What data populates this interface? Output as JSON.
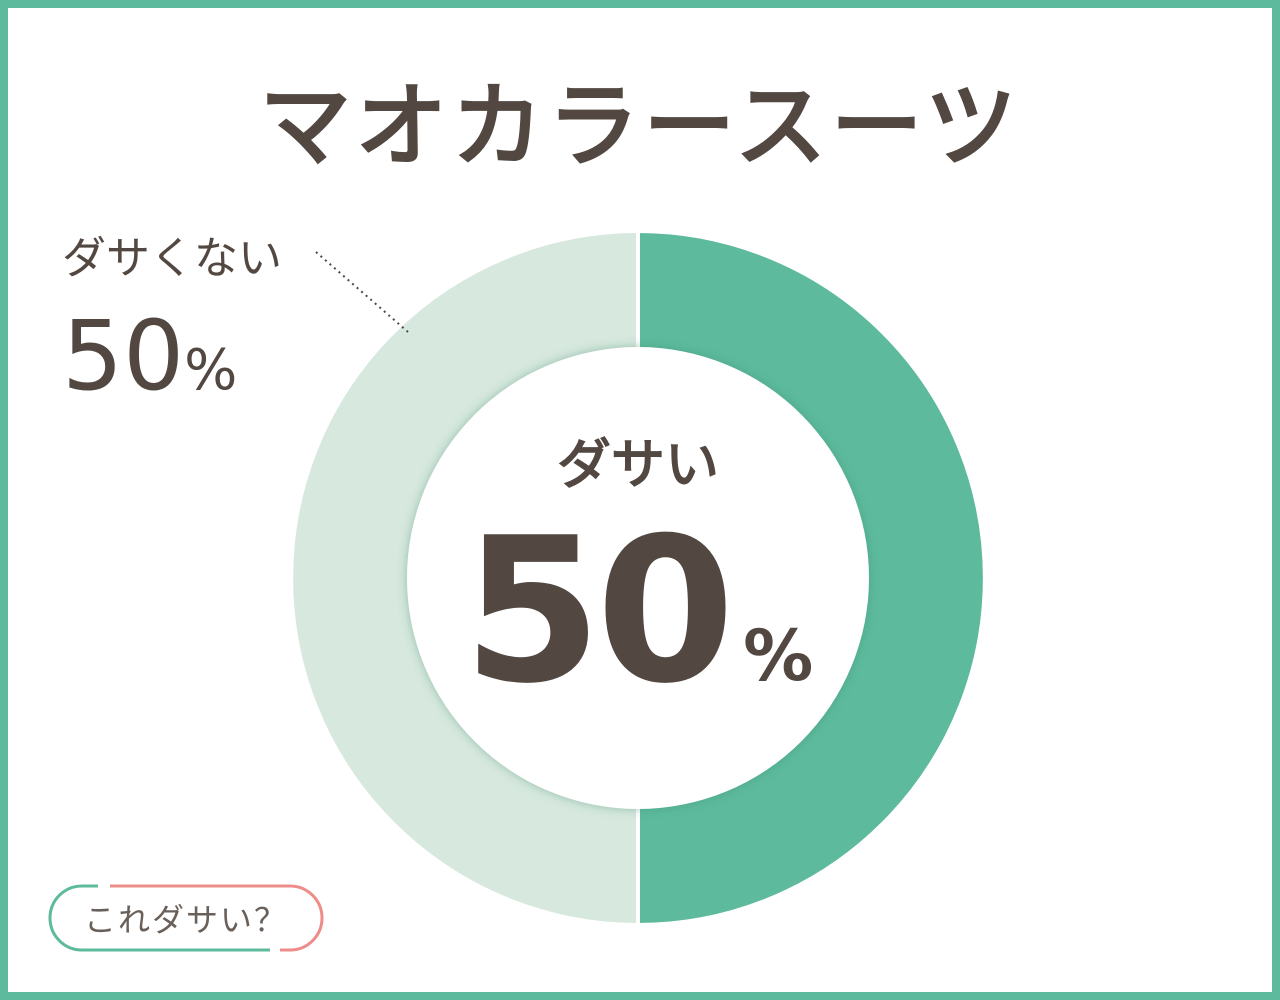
{
  "title": "マオカラースーツ",
  "chart_data": {
    "type": "pie",
    "style": "donut",
    "categories": [
      "ダサい",
      "ダサくない"
    ],
    "values": [
      50,
      50
    ],
    "colors": [
      "#5dba9d",
      "#d7e8de"
    ],
    "labels": {
      "main": {
        "name": "ダサい",
        "value": "50",
        "unit": "%"
      },
      "other": {
        "name": "ダサくない",
        "value": "50",
        "unit": "%"
      }
    }
  },
  "badge": {
    "label": "これダサい？",
    "colors": [
      "#5dba9d",
      "#ee8c89"
    ]
  },
  "colors": {
    "border": "#5dba9d",
    "text": "#524841"
  }
}
